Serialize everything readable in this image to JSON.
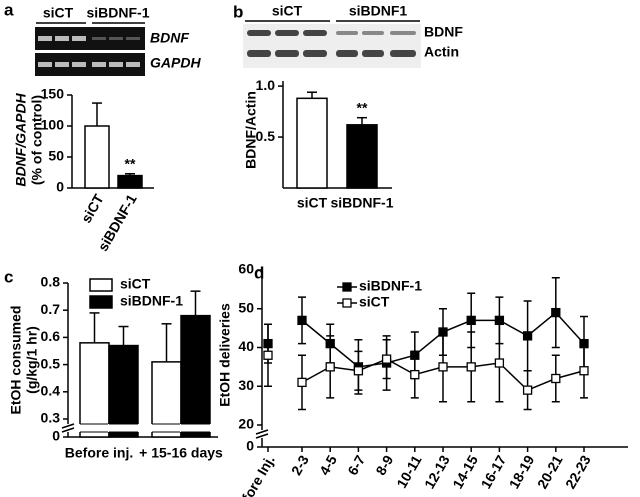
{
  "chart_data": [
    {
      "type": "bar",
      "panel": "a",
      "gel_labels": {
        "columns": [
          "siCT",
          "siBDNF-1"
        ],
        "rows": [
          "BDNF",
          "GAPDH"
        ]
      },
      "ylabel": [
        "BDNF/GAPDH",
        "(% of control)"
      ],
      "categories": [
        "siCT",
        "siBDNF-1"
      ],
      "values": [
        100,
        20
      ],
      "errors": [
        37,
        3
      ],
      "colors": [
        "#ffffff",
        "#000000"
      ],
      "annotation": "**",
      "ylim": [
        0,
        150
      ],
      "yticks": [
        0,
        50,
        100,
        150
      ]
    },
    {
      "type": "bar",
      "panel": "b",
      "gel_labels": {
        "columns": [
          "siCT",
          "siBDNF1"
        ],
        "rows": [
          "BDNF",
          "Actin"
        ]
      },
      "ylabel": [
        "BDNF/Actin"
      ],
      "categories": [
        "siCT",
        "siBDNF-1"
      ],
      "values": [
        0.88,
        0.62
      ],
      "errors": [
        0.06,
        0.07
      ],
      "colors": [
        "#ffffff",
        "#000000"
      ],
      "annotation": "**",
      "ylim": [
        0,
        1.05
      ],
      "yticks": [
        0.5,
        {
          "value": 1,
          "label": "1.0"
        }
      ]
    },
    {
      "type": "grouped_bar",
      "panel": "c",
      "ylabel": [
        "EtOH consumed",
        "(g/kg/1 hr)"
      ],
      "categories": [
        "Before inj.",
        "+ 15-16 days"
      ],
      "series": [
        {
          "name": "siCT",
          "color": "#ffffff",
          "values": [
            0.58,
            0.51
          ],
          "errors": [
            0.11,
            0.14
          ]
        },
        {
          "name": "siBDNF-1",
          "color": "#000000",
          "values": [
            0.57,
            0.68
          ],
          "errors": [
            0.07,
            0.09
          ]
        }
      ],
      "ylim": [
        0.3,
        0.8
      ],
      "yticks": [
        0,
        0.3,
        0.4,
        0.5,
        0.6,
        0.7,
        0.8
      ],
      "axis_break": true
    },
    {
      "type": "line",
      "panel": "d",
      "ylabel": [
        "EtOH deliveries"
      ],
      "categories": [
        "Before Inj.",
        "2-3",
        "4-5",
        "6-7",
        "8-9",
        "10-11",
        "12-13",
        "14-15",
        "16-17",
        "18-19",
        "20-21",
        "22-23"
      ],
      "series": [
        {
          "name": "siBDNF-1",
          "color": "#000000",
          "marker": "filled-square",
          "values": [
            41,
            47,
            41,
            35,
            36,
            38,
            44,
            47,
            47,
            43,
            49,
            41
          ],
          "errors": [
            5,
            6,
            5,
            7,
            7,
            6,
            6,
            7,
            6,
            9,
            9,
            7
          ]
        },
        {
          "name": "siCT",
          "color": "#000000",
          "marker": "open-square",
          "values": [
            38,
            31,
            35,
            34,
            37,
            33,
            35,
            35,
            36,
            29,
            32,
            34
          ],
          "errors": [
            8,
            7,
            8,
            5,
            5,
            6,
            9,
            9,
            10,
            5,
            6,
            7
          ]
        }
      ],
      "ylim": [
        20,
        60
      ],
      "yticks": [
        0,
        20,
        30,
        40,
        50,
        60
      ],
      "axis_break": true
    }
  ]
}
